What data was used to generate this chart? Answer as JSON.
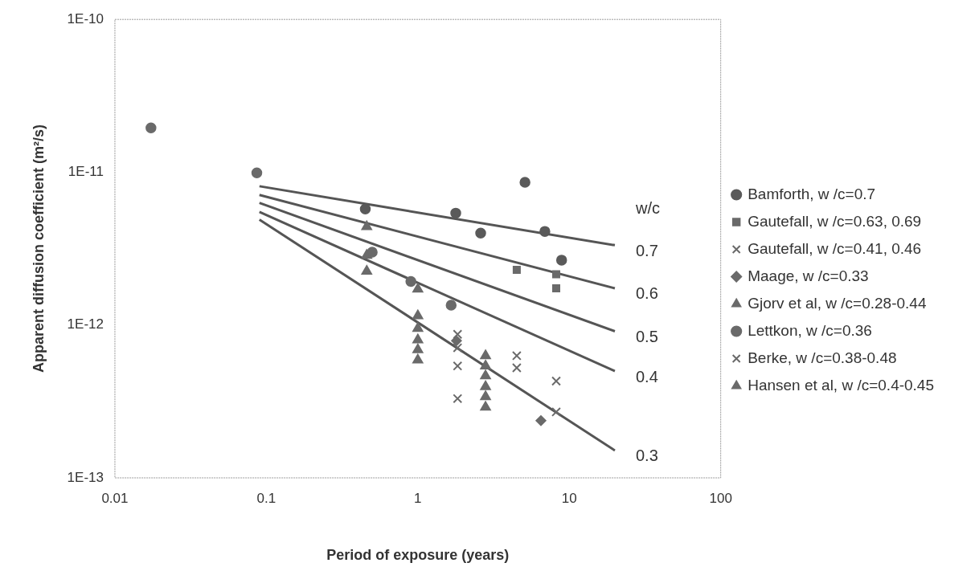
{
  "chart_data": {
    "type": "scatter",
    "xlabel": "Period of exposure (years)",
    "ylabel": "Apparent diffusion coefficient (m²/s)",
    "log": "xy",
    "grid": false,
    "legend": "right",
    "xlim": [
      0.01,
      100
    ],
    "xticks": [
      0.01,
      0.1,
      1,
      10,
      100
    ],
    "ylim": [
      1e-13,
      1e-10
    ],
    "yticks": [
      {
        "value": 1e-13,
        "label": "1E-13"
      },
      {
        "value": 1e-12,
        "label": "1E-12"
      },
      {
        "value": 1e-11,
        "label": "1E-11"
      },
      {
        "value": 1e-10,
        "label": "1E-10"
      }
    ],
    "annotations": [
      "w/c"
    ],
    "series": [
      {
        "name": "Bamforth, w /c=0.7",
        "color": "#5a5a5a",
        "marker": "circle",
        "x": [
          0.45,
          1.78,
          2.6,
          5.1,
          6.9,
          8.9
        ],
        "values": [
          5.75e-12,
          5.4e-12,
          4e-12,
          8.6e-12,
          4.1e-12,
          2.66e-12
        ]
      },
      {
        "name": "Gautefall, w /c=0.63, 0.69",
        "color": "#6a6a6a",
        "marker": "square",
        "x": [
          4.5,
          8.2,
          8.2
        ],
        "values": [
          2.3e-12,
          2.15e-12,
          1.74e-12
        ]
      },
      {
        "name": "Gautefall, w /c=0.41, 0.46",
        "color": "#6a6a6a",
        "marker": "cross",
        "x": [
          4.5,
          4.5,
          8.2,
          8.2
        ],
        "values": [
          6.3e-13,
          5.25e-13,
          4.3e-13,
          2.7e-13
        ]
      },
      {
        "name": "Maage, w /c=0.33",
        "color": "#6a6a6a",
        "marker": "diamond",
        "x": [
          1.8,
          6.5
        ],
        "values": [
          7.9e-13,
          2.37e-13
        ]
      },
      {
        "name": "Gjorv et al, w /c=0.28-0.44",
        "color": "#6a6a6a",
        "marker": "triangle",
        "x": [
          1,
          1,
          1,
          1,
          1,
          1,
          2.8,
          2.8,
          2.8,
          2.8,
          2.8,
          2.8
        ],
        "values": [
          1.72e-12,
          1.15e-12,
          9.5e-13,
          8e-13,
          6.9e-13,
          5.9e-13,
          6.3e-13,
          5.4e-13,
          4.65e-13,
          3.95e-13,
          3.4e-13,
          2.9e-13
        ]
      },
      {
        "name": "Lettkon, w /c=0.36",
        "color": "#6a6a6a",
        "marker": "circle",
        "x": [
          0.0173,
          0.0865,
          0.5,
          0.9,
          1.66
        ],
        "values": [
          1.95e-11,
          9.9e-12,
          3e-12,
          1.93e-12,
          1.35e-12
        ]
      },
      {
        "name": "Berke, w /c=0.38-0.48",
        "color": "#6a6a6a",
        "marker": "cross",
        "x": [
          1.83,
          1.83,
          1.83,
          1.83
        ],
        "values": [
          8.7e-13,
          7.1e-13,
          5.4e-13,
          3.3e-13
        ]
      },
      {
        "name": "Hansen et al, w /c=0.4-0.45",
        "color": "#6a6a6a",
        "marker": "triangle",
        "x": [
          0.46,
          0.46,
          0.46
        ],
        "values": [
          4.4e-12,
          2.86e-12,
          2.25e-12
        ]
      },
      {
        "name": "0.7",
        "type": "line",
        "color": "#555555",
        "marker": "none",
        "x": [
          0.09,
          20
        ],
        "values": [
          8.1e-12,
          3.33e-12
        ]
      },
      {
        "name": "0.6",
        "type": "line",
        "color": "#555555",
        "marker": "none",
        "x": [
          0.09,
          20
        ],
        "values": [
          7.1e-12,
          1.74e-12
        ]
      },
      {
        "name": "0.5",
        "type": "line",
        "color": "#555555",
        "marker": "none",
        "x": [
          0.09,
          20
        ],
        "values": [
          6.3e-12,
          9.1e-13
        ]
      },
      {
        "name": "0.4",
        "type": "line",
        "color": "#555555",
        "marker": "none",
        "x": [
          0.09,
          20
        ],
        "values": [
          5.5e-12,
          5e-13
        ]
      },
      {
        "name": "0.3",
        "type": "line",
        "color": "#555555",
        "marker": "none",
        "x": [
          0.09,
          20
        ],
        "values": [
          4.9e-12,
          1.51e-13
        ]
      }
    ]
  }
}
